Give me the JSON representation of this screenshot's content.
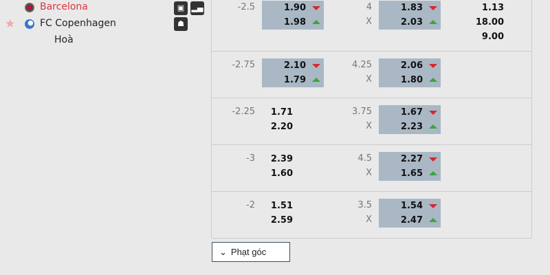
{
  "match": {
    "home": "Barcelona",
    "away": "FC Copenhagen",
    "draw": "Hoà",
    "icons": [
      "monitor-icon",
      "stats-icon",
      "lineup-icon"
    ]
  },
  "rows": [
    {
      "handicap": "-2.5",
      "home": "1.90",
      "home_dir": "down",
      "away": "1.98",
      "away_dir": "up",
      "hcap_hl": true,
      "line": "4",
      "over": "1.83",
      "over_dir": "down",
      "under": "2.03",
      "under_dir": "up",
      "ou_hl": true,
      "under_label": "X",
      "x12": [
        "1.13",
        "18.00",
        "9.00"
      ]
    },
    {
      "handicap": "-2.75",
      "home": "2.10",
      "home_dir": "down",
      "away": "1.79",
      "away_dir": "up",
      "hcap_hl": true,
      "line": "4.25",
      "over": "2.06",
      "over_dir": "down",
      "under": "1.80",
      "under_dir": "up",
      "ou_hl": true,
      "under_label": "X"
    },
    {
      "handicap": "-2.25",
      "home": "1.71",
      "away": "2.20",
      "hcap_hl": false,
      "line": "3.75",
      "over": "1.67",
      "over_dir": "down",
      "under": "2.23",
      "under_dir": "up",
      "ou_hl": true,
      "under_label": "X"
    },
    {
      "handicap": "-3",
      "home": "2.39",
      "away": "1.60",
      "hcap_hl": false,
      "line": "4.5",
      "over": "2.27",
      "over_dir": "down",
      "under": "1.65",
      "under_dir": "up",
      "ou_hl": true,
      "under_label": "X"
    },
    {
      "handicap": "-2",
      "home": "1.51",
      "away": "2.59",
      "hcap_hl": false,
      "line": "3.5",
      "over": "1.54",
      "over_dir": "down",
      "under": "2.47",
      "under_dir": "up",
      "ou_hl": true,
      "under_label": "X"
    }
  ],
  "corner_button": {
    "label": "Phạt góc",
    "icon": "chevron-down-icon"
  },
  "colors": {
    "highlight": "#a9b8c4",
    "down": "#d9262e",
    "up": "#3aa63a",
    "home_team": "#d9363e"
  }
}
